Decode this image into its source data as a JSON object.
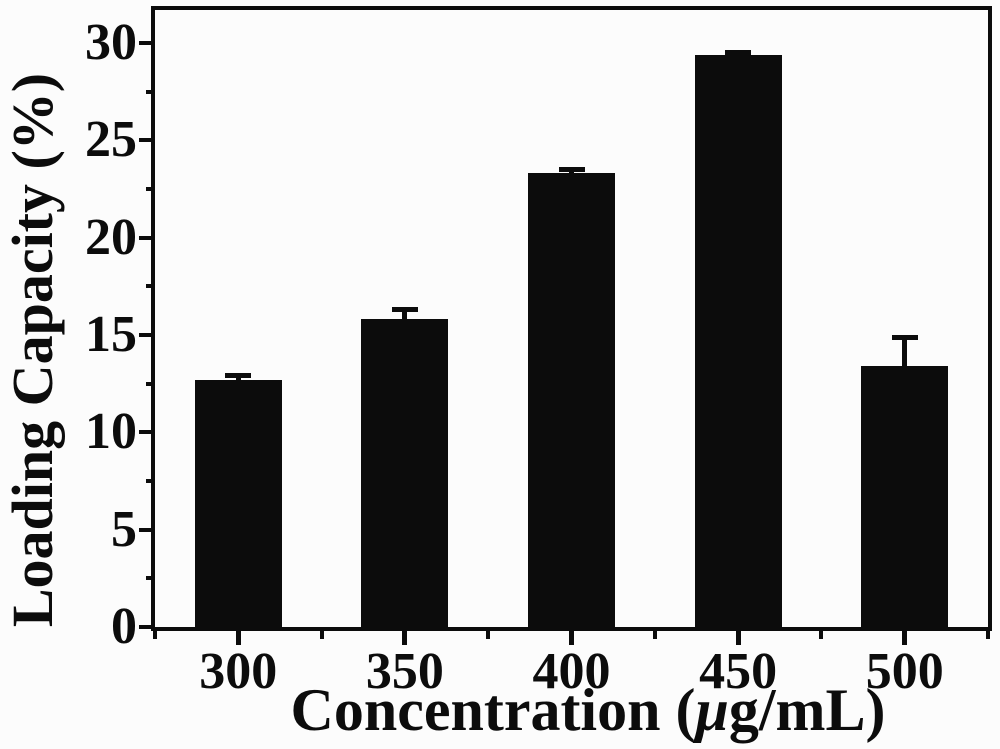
{
  "figure": {
    "background": "#fcfcfc",
    "ink": "#0c0c0c"
  },
  "chart_data": {
    "type": "bar",
    "title": "",
    "ylabel": "Loading Capacity (%)",
    "xlabel": "Concentration (μg/mL)",
    "xlabel_parts": {
      "prefix": "Concentration (",
      "mu": "μ",
      "suffix": "g/mL)"
    },
    "categories": [
      "300",
      "350",
      "400",
      "450",
      "500"
    ],
    "values": [
      12.7,
      15.8,
      23.3,
      29.4,
      13.4
    ],
    "errors_plus": [
      0.2,
      0.5,
      0.2,
      0.1,
      1.45
    ],
    "y_ticks": [
      0,
      5,
      10,
      15,
      20,
      25,
      30
    ],
    "y_minor_step": 2.5,
    "ylim": [
      0,
      31.7
    ],
    "bar_color": "#0c0c0c",
    "grid": false,
    "legend": false,
    "error_caps": true
  }
}
